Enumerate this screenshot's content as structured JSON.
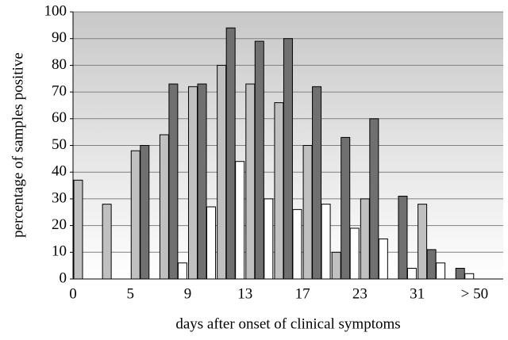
{
  "chart_data": {
    "type": "bar",
    "x_label": "days after onset of clinical symptoms",
    "y_label": "percentage of samples positive",
    "categories": [
      "0",
      null,
      "5",
      null,
      "9",
      null,
      "13",
      null,
      "17",
      null,
      "23",
      null,
      "31",
      null,
      "> 50"
    ],
    "series": [
      {
        "color": "#c0c0c0",
        "values": [
          37,
          28,
          48,
          54,
          72,
          80,
          73,
          66,
          50,
          10,
          30,
          null,
          28,
          null,
          null
        ]
      },
      {
        "color": "#707070",
        "values": [
          null,
          null,
          50,
          73,
          73,
          94,
          89,
          90,
          72,
          53,
          60,
          31,
          11,
          4,
          null
        ]
      },
      {
        "color": "#ffffff",
        "values": [
          null,
          null,
          null,
          6,
          27,
          44,
          30,
          26,
          28,
          19,
          15,
          4,
          6,
          2,
          null
        ]
      }
    ],
    "ylim": [
      0,
      100
    ],
    "yticks": [
      0,
      10,
      20,
      30,
      40,
      50,
      60,
      70,
      80,
      90,
      100
    ],
    "grid": true
  }
}
